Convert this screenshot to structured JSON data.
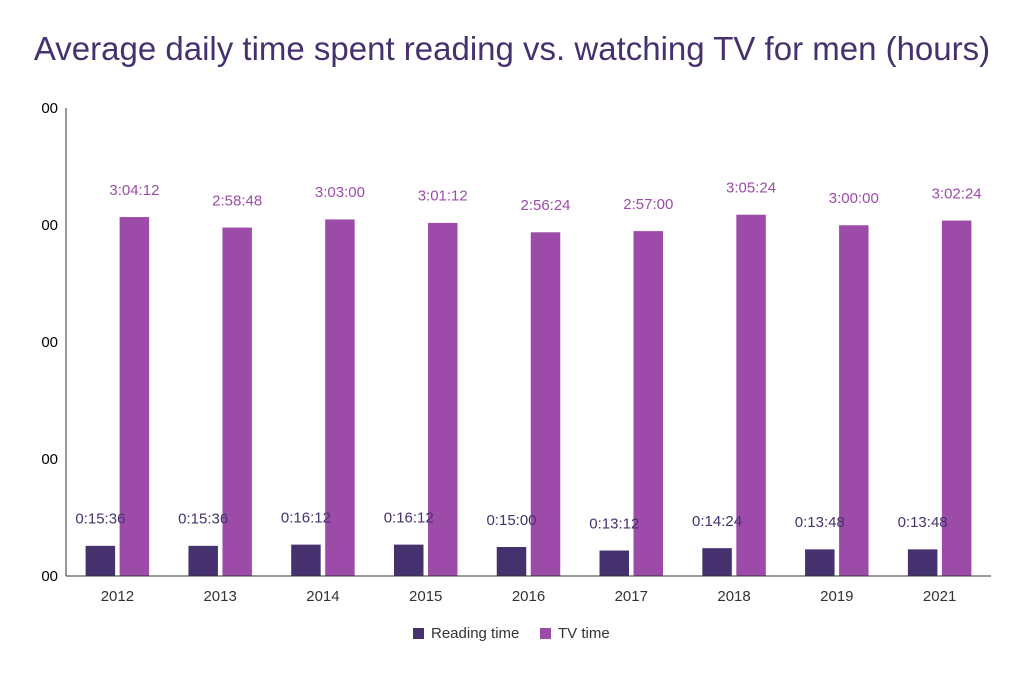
{
  "chart_data": {
    "type": "bar",
    "title": "Average daily time spent reading vs. watching TV for men (hours)",
    "xlabel": "",
    "ylabel": "",
    "categories": [
      "2012",
      "2013",
      "2014",
      "2015",
      "2016",
      "2017",
      "2018",
      "2019",
      "2021"
    ],
    "series": [
      {
        "name": "Reading time",
        "color": "#45316d",
        "values": [
          0.26,
          0.26,
          0.27,
          0.27,
          0.25,
          0.22,
          0.24,
          0.23,
          0.23
        ],
        "labels": [
          "0:15:36",
          "0:15:36",
          "0:16:12",
          "0:16:12",
          "0:15:00",
          "0:13:12",
          "0:14:24",
          "0:13:48",
          "0:13:48"
        ]
      },
      {
        "name": "TV time",
        "color": "#9c4ca8",
        "values": [
          3.07,
          2.98,
          3.05,
          3.02,
          2.94,
          2.95,
          3.09,
          3.0,
          3.04
        ],
        "labels": [
          "3:04:12",
          "2:58:48",
          "3:03:00",
          "3:01:12",
          "2:56:24",
          "2:57:00",
          "3:05:24",
          "3:00:00",
          "3:02:24"
        ]
      }
    ],
    "ylim": [
      0,
      4
    ],
    "y_ticks": [
      0,
      1,
      2,
      3,
      4
    ],
    "y_tick_labels": [
      "00",
      "00",
      "00",
      "00",
      "00"
    ],
    "grid": false,
    "legend": "bottom-center"
  }
}
